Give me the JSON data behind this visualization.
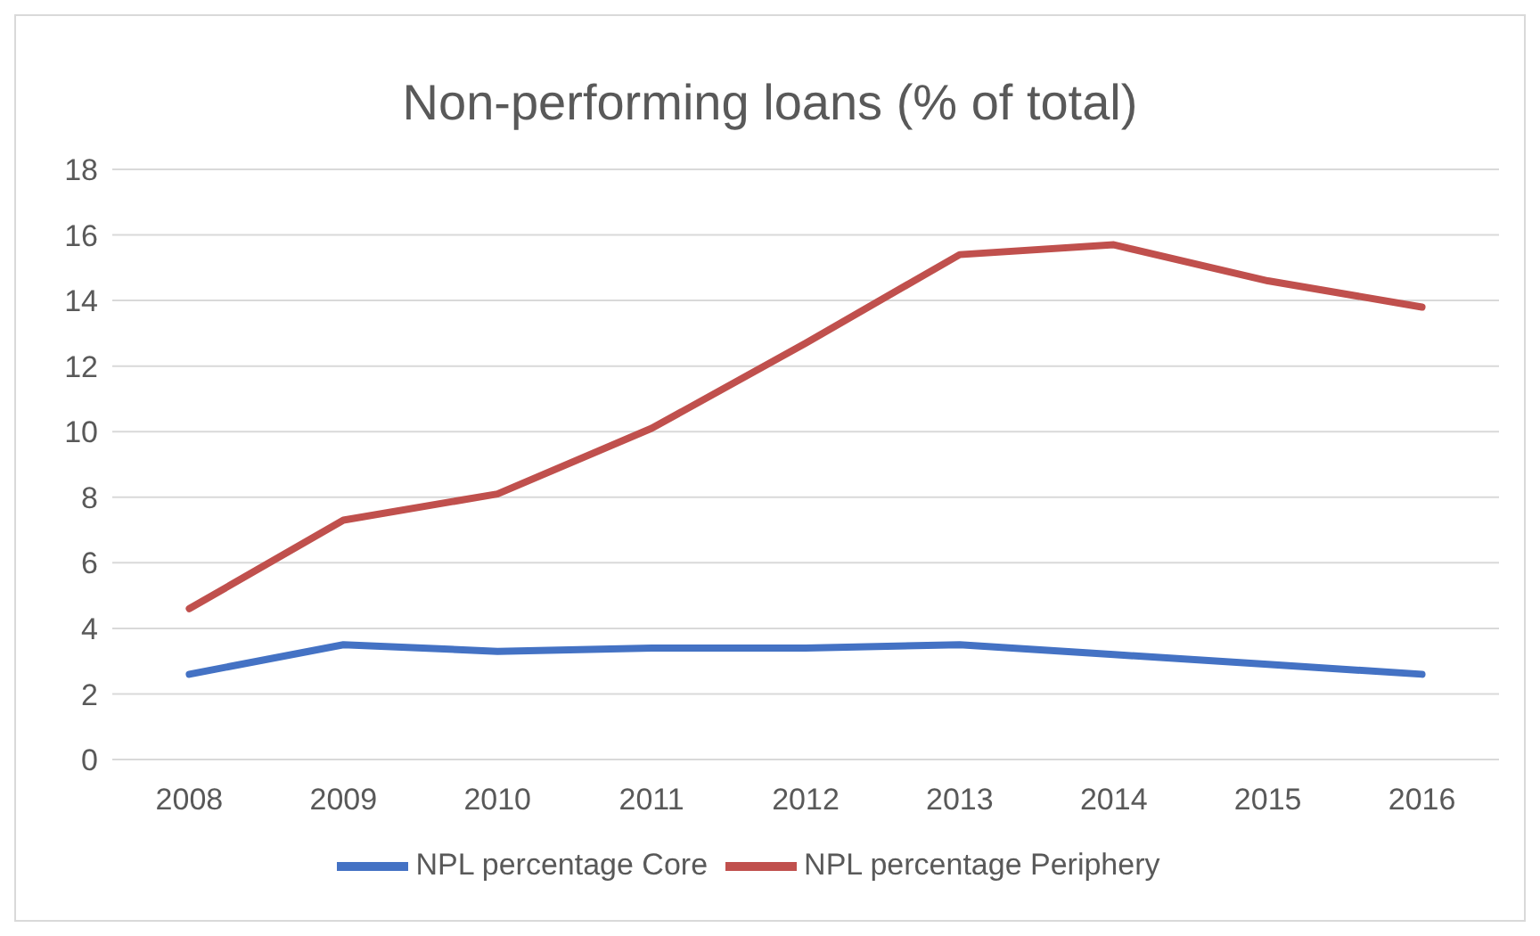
{
  "chart_data": {
    "type": "line",
    "title": "Non-performing loans (% of total)",
    "categories": [
      "2008",
      "2009",
      "2010",
      "2011",
      "2012",
      "2013",
      "2014",
      "2015",
      "2016"
    ],
    "series": [
      {
        "name": "NPL percentage Core",
        "color": "#4472c4",
        "values": [
          2.6,
          3.5,
          3.3,
          3.4,
          3.4,
          3.5,
          3.2,
          2.9,
          2.6
        ]
      },
      {
        "name": "NPL percentage Periphery",
        "color": "#c0504d",
        "values": [
          4.6,
          7.3,
          8.1,
          10.1,
          12.7,
          15.4,
          15.7,
          14.6,
          13.8
        ]
      }
    ],
    "ylim": [
      0,
      18
    ],
    "yticks": [
      0,
      2,
      4,
      6,
      8,
      10,
      12,
      14,
      16,
      18
    ],
    "grid": "y",
    "legend": "bottom",
    "marker": "none",
    "line_style": "solid"
  }
}
